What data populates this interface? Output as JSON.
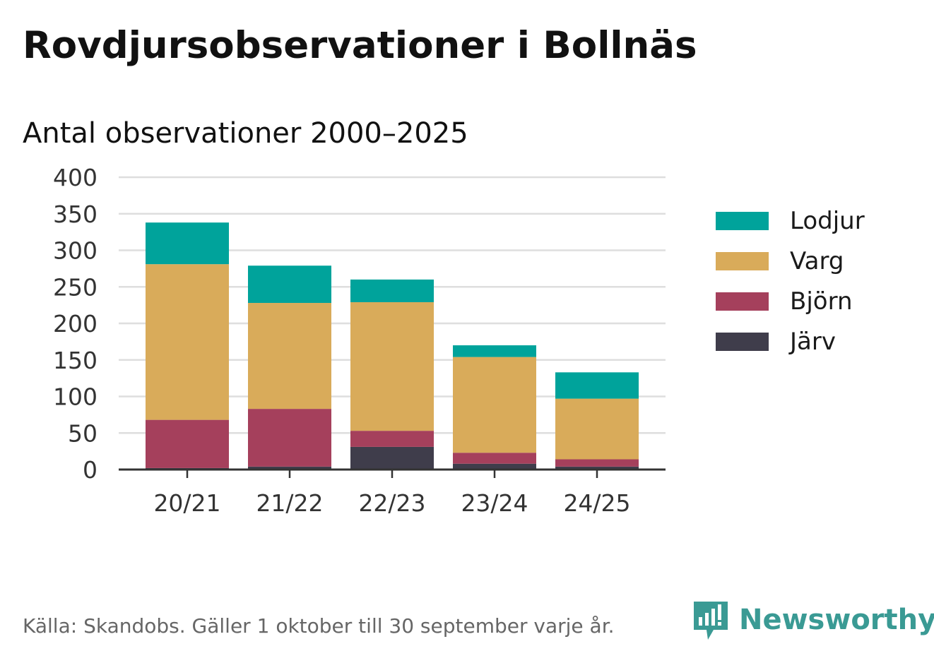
{
  "title": "Rovdjursobservationer i Bollnäs",
  "subtitle": "Antal observationer 2000–2025",
  "footer": "Källa: Skandobs. Gäller 1 oktober till 30 september varje år.",
  "brand": {
    "name": "Newsworthy",
    "icon": "newsworthy-logo-icon",
    "color": "#3a9a94"
  },
  "colors": {
    "Järv": "#3f3d4b",
    "Björn": "#a5405c",
    "Varg": "#d9ab5a",
    "Lodjur": "#00a39b"
  },
  "legend": {
    "placement": "right",
    "items": [
      "Lodjur",
      "Varg",
      "Björn",
      "Järv"
    ]
  },
  "chart_data": {
    "type": "bar",
    "stacked": true,
    "categories": [
      "20/21",
      "21/22",
      "22/23",
      "23/24",
      "24/25"
    ],
    "series": [
      {
        "name": "Järv",
        "values": [
          2,
          4,
          31,
          8,
          4
        ]
      },
      {
        "name": "Björn",
        "values": [
          66,
          79,
          22,
          15,
          10
        ]
      },
      {
        "name": "Varg",
        "values": [
          213,
          145,
          176,
          131,
          83
        ]
      },
      {
        "name": "Lodjur",
        "values": [
          57,
          51,
          31,
          16,
          36
        ]
      }
    ],
    "yticks": [
      0,
      50,
      100,
      150,
      200,
      250,
      300,
      350,
      400
    ],
    "ylim": [
      0,
      400
    ],
    "grid": true
  }
}
